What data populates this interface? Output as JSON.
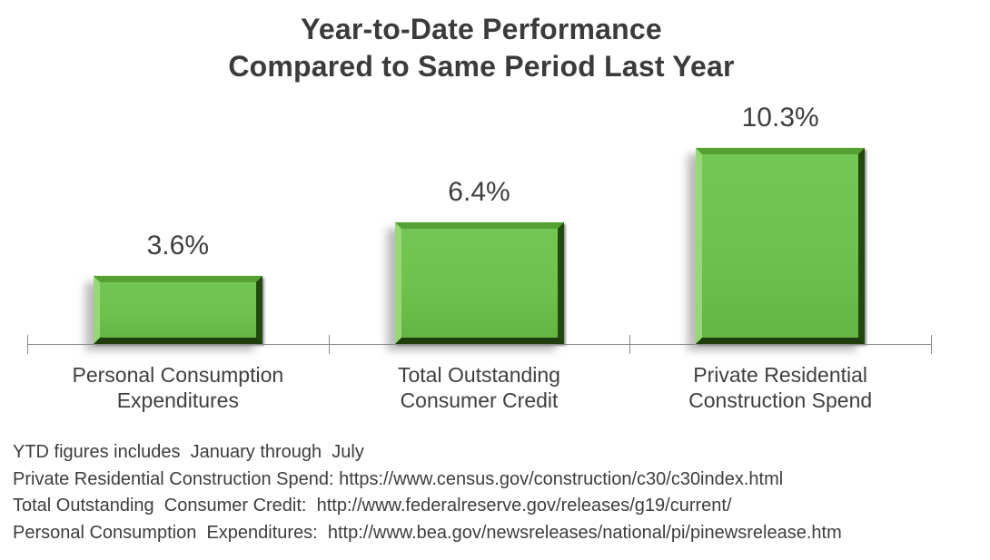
{
  "title": {
    "line1": "Year-to-Date Performance",
    "line2": "Compared to Same Period Last Year"
  },
  "chart_data": {
    "type": "bar",
    "title": "Year-to-Date Performance Compared to Same Period Last Year",
    "categories": [
      "Personal Consumption\nExpenditures",
      "Total Outstanding\nConsumer Credit",
      "Private Residential\nConstruction Spend"
    ],
    "values": [
      3.6,
      6.4,
      10.3
    ],
    "data_labels": [
      "3.6%",
      "6.4%",
      "10.3%"
    ],
    "unit": "percent",
    "bar_color": "#6ec04c",
    "bar_bevel_dark": "#24490f",
    "bar_bevel_light": "#96d878",
    "axis_color": "#898989",
    "text_color": "#3b3b3b",
    "ylim": [
      0,
      10.3
    ],
    "value_axis_visible": false,
    "grid": false,
    "legend": "none",
    "data_label_position": "above"
  },
  "footnotes": {
    "line1": "YTD figures includes  January through  July",
    "line2": "Private Residential Construction Spend: https://www.census.gov/construction/c30/c30index.html",
    "line3": "Total Outstanding  Consumer Credit:  http://www.federalreserve.gov/releases/g19/current/",
    "line4": "Personal Consumption  Expenditures:  http://www.bea.gov/newsreleases/national/pi/pinewsrelease.htm"
  }
}
